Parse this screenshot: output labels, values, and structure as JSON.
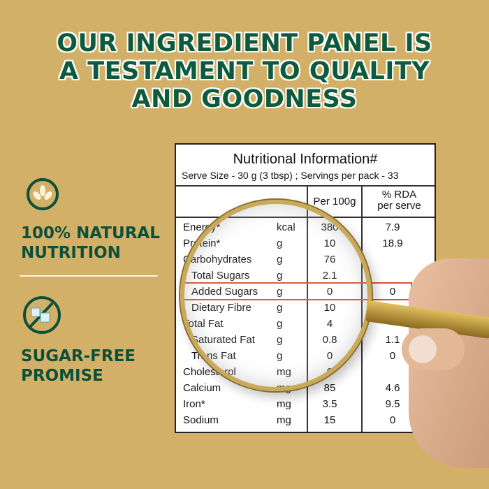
{
  "headline": [
    "OUR INGREDIENT PANEL IS",
    "A TESTAMENT TO QUALITY",
    "AND GOODNESS"
  ],
  "features": [
    {
      "icon": "wheat-icon",
      "lines": [
        "100% NATURAL",
        "NUTRITION"
      ]
    },
    {
      "icon": "no-sugar-icon",
      "lines": [
        "SUGAR-FREE",
        "PROMISE"
      ]
    }
  ],
  "panel": {
    "title": "Nutritional Information#",
    "serve": "Serve Size - 30 g (3 tbsp) ;  Servings per pack - 33",
    "col_per100": "Per 100g",
    "col_rda": [
      "% RDA",
      "per serve"
    ],
    "rows": [
      {
        "name": "Energy*",
        "unit": "kcal",
        "per100": "380",
        "rda": "7.9",
        "indent": false
      },
      {
        "name": "Protein*",
        "unit": "g",
        "per100": "10",
        "rda": "18.9",
        "indent": false
      },
      {
        "name": "Carbohydrates",
        "unit": "g",
        "per100": "76",
        "rda": "",
        "indent": false
      },
      {
        "name": "Total Sugars",
        "unit": "g",
        "per100": "2.1",
        "rda": "",
        "indent": true
      },
      {
        "name": "Added Sugars",
        "unit": "g",
        "per100": "0",
        "rda": "0",
        "indent": true,
        "highlight": true
      },
      {
        "name": "Dietary Fibre",
        "unit": "g",
        "per100": "10",
        "rda": "",
        "indent": true
      },
      {
        "name": "Total Fat",
        "unit": "g",
        "per100": "4",
        "rda": "",
        "indent": false
      },
      {
        "name": "Saturated Fat",
        "unit": "g",
        "per100": "0.8",
        "rda": "1.1",
        "indent": true
      },
      {
        "name": "Trans Fat",
        "unit": "g",
        "per100": "0",
        "rda": "0",
        "indent": true
      },
      {
        "name": "Cholesterol",
        "unit": "mg",
        "per100": "0",
        "rda": "",
        "indent": false
      },
      {
        "name": "Calcium",
        "unit": "mg",
        "per100": "85",
        "rda": "4.6",
        "indent": false
      },
      {
        "name": "Iron*",
        "unit": "mg",
        "per100": "3.5",
        "rda": "9.5",
        "indent": false
      },
      {
        "name": "Sodium",
        "unit": "mg",
        "per100": "15",
        "rda": "0",
        "indent": false
      }
    ]
  },
  "colors": {
    "background": "#d3b068",
    "brand_green": "#0e4f3a",
    "highlight": "#d9522e"
  }
}
